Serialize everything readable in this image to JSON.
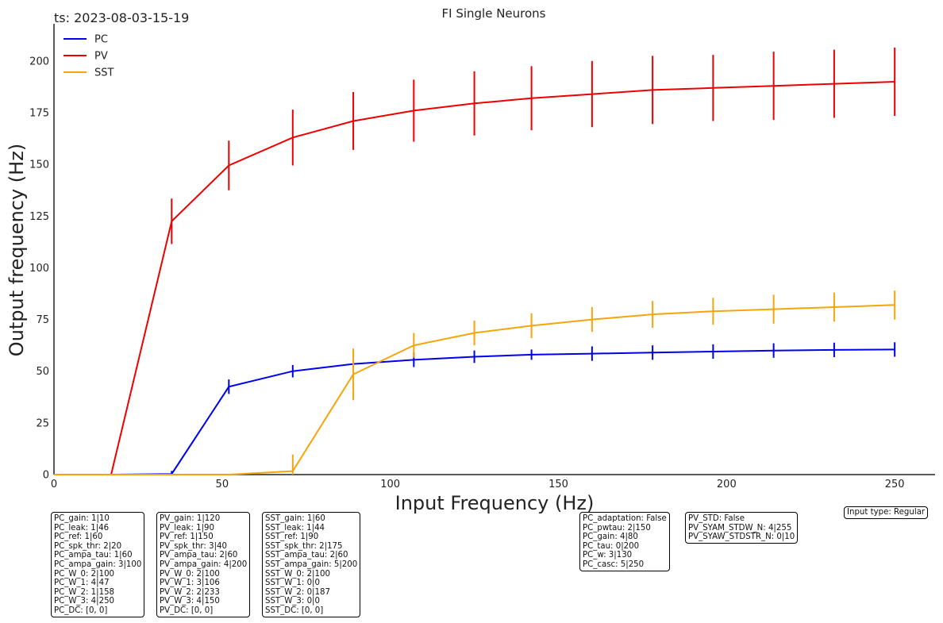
{
  "timestamp": "ts: 2023-08-03-15-19",
  "chart_data": {
    "type": "line",
    "title": "FI Single Neurons",
    "xlabel": "Input Frequency (Hz)",
    "ylabel": "Output frequency (Hz)",
    "xlim": [
      0,
      262
    ],
    "ylim": [
      0,
      218
    ],
    "xticks": [
      0,
      50,
      100,
      150,
      200,
      250
    ],
    "yticks": [
      0,
      25,
      50,
      75,
      100,
      125,
      150,
      175,
      200
    ],
    "grid": false,
    "legend_position": "top-left",
    "x": [
      0,
      17,
      35,
      52,
      71,
      89,
      107,
      125,
      142,
      160,
      178,
      196,
      214,
      232,
      250
    ],
    "series": [
      {
        "name": "PC",
        "color": "#0000ee",
        "values": [
          0,
          0,
          0.3,
          42.5,
          50,
          53.5,
          55.5,
          57,
          58,
          58.5,
          59,
          59.5,
          60,
          60.3,
          60.5
        ],
        "errors": [
          0,
          0,
          1.5,
          3.5,
          3,
          0,
          3.5,
          3,
          2.5,
          3.5,
          3.5,
          3.5,
          3.5,
          3.5,
          3.5
        ]
      },
      {
        "name": "PV",
        "color": "#ee0000",
        "values": [
          0,
          0,
          122.5,
          149.5,
          163,
          171,
          176,
          179.5,
          182,
          184,
          186,
          187,
          188,
          189,
          190
        ],
        "errors": [
          0,
          0,
          11,
          12,
          13.5,
          14,
          15,
          15.5,
          15.5,
          16,
          16.5,
          16,
          16.5,
          16.5,
          16.5
        ]
      },
      {
        "name": "SST",
        "color": "#f5a50a",
        "values": [
          0,
          0,
          0,
          0,
          1.7,
          48.5,
          62.5,
          68.5,
          72,
          75,
          77.5,
          79,
          80,
          81,
          82
        ],
        "errors": [
          0,
          0,
          0,
          0,
          8,
          12.5,
          6,
          6,
          6,
          6,
          6.5,
          6.5,
          7,
          7,
          7
        ]
      }
    ]
  },
  "param_boxes": [
    {
      "lines": [
        "PC_gain: 1|10",
        "PC_leak: 1|46",
        "PC_ref: 1|60",
        "PC_spk_thr: 2|20",
        "PC_ampa_tau: 1|60",
        "PC_ampa_gain: 3|100",
        "PC_W_0: 2|100",
        "PC_W_1: 4|47",
        "PC_W_2: 1|158",
        "PC_W_3: 4|250",
        "PC_DC: [0, 0]"
      ]
    },
    {
      "lines": [
        "PV_gain: 1|120",
        "PV_leak: 1|90",
        "PV_ref: 1|150",
        "PV_spk_thr: 3|40",
        "PV_ampa_tau: 2|60",
        "PV_ampa_gain: 4|200",
        "PV_W_0: 2|100",
        "PV_W_1: 3|106",
        "PV_W_2: 2|233",
        "PV_W_3: 4|150",
        "PV_DC: [0, 0]"
      ]
    },
    {
      "lines": [
        "SST_gain: 1|60",
        "SST_leak: 1|44",
        "SST_ref: 1|90",
        "SST_spk_thr: 2|175",
        "SST_ampa_tau: 2|60",
        "SST_ampa_gain: 5|200",
        "SST_W_0: 2|100",
        "SST_W_1: 0|0",
        "SST_W_2: 0|187",
        "SST_W_3: 0|0",
        "SST_DC: [0, 0]"
      ]
    },
    {
      "lines": [
        "PC_adaptation: False",
        "PC_pwtau: 2|150",
        "PC_gain: 4|80",
        "PC_tau: 0|200",
        "PC_w: 3|130",
        "PC_casc: 5|250"
      ]
    },
    {
      "lines": [
        "PV_STD: False",
        "PV_SYAM_STDW_N: 4|255",
        "PV_SYAW_STDSTR_N: 0|10"
      ]
    },
    {
      "lines": [
        "Input type: Regular"
      ]
    }
  ]
}
